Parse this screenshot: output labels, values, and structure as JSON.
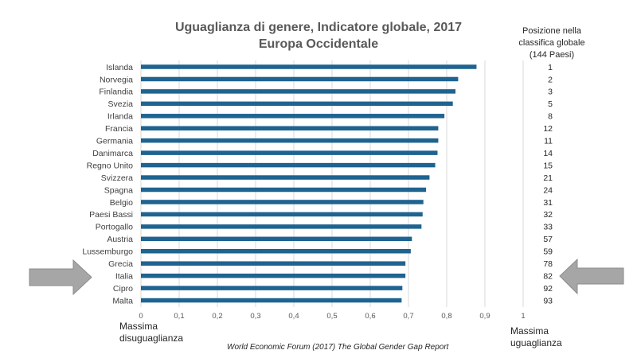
{
  "chart_data": {
    "type": "bar",
    "orientation": "horizontal",
    "title": "Uguaglianza di genere, Indicatore globale, 2017",
    "subtitle": "Europa Occidentale",
    "categories": [
      "Islanda",
      "Norvegia",
      "Finlandia",
      "Svezia",
      "Irlanda",
      "Francia",
      "Germania",
      "Danimarca",
      "Regno Unito",
      "Svizzera",
      "Spagna",
      "Belgio",
      "Paesi Bassi",
      "Portogallo",
      "Austria",
      "Lussemburgo",
      "Grecia",
      "Italia",
      "Cipro",
      "Malta"
    ],
    "values": [
      0.878,
      0.83,
      0.823,
      0.816,
      0.794,
      0.778,
      0.778,
      0.776,
      0.77,
      0.755,
      0.746,
      0.739,
      0.737,
      0.734,
      0.709,
      0.706,
      0.692,
      0.692,
      0.684,
      0.682
    ],
    "ranks": [
      "1",
      "2",
      "3",
      "5",
      "8",
      "12",
      "11",
      "14",
      "15",
      "21",
      "24",
      "31",
      "32",
      "33",
      "57",
      "59",
      "78",
      "82",
      "92",
      "93"
    ],
    "rank_header": [
      "Posizione nella",
      "classifica globale",
      "(144 Paesi)"
    ],
    "xlim": [
      0,
      1
    ],
    "xticks": [
      0,
      0.1,
      0.2,
      0.3,
      0.4,
      0.5,
      0.6,
      0.7,
      0.8,
      0.9,
      1
    ],
    "xtick_labels": [
      "0",
      "0,1",
      "0,2",
      "0,3",
      "0,4",
      "0,5",
      "0,6",
      "0,7",
      "0,8",
      "0,9",
      "1"
    ],
    "grid": true,
    "xlabel_left": [
      "Massima",
      "disuguaglianza"
    ],
    "xlabel_right": [
      "Massima",
      "uguaglianza"
    ],
    "source": "World Economic Forum (2017) The Global Gender Gap Report",
    "highlighted_category": "Italia",
    "colors": {
      "bar": "#1f6391",
      "grid": "#d9d9d9",
      "arrow": "#a6a6a6",
      "arrow_stroke": "#8c8c8c"
    }
  }
}
